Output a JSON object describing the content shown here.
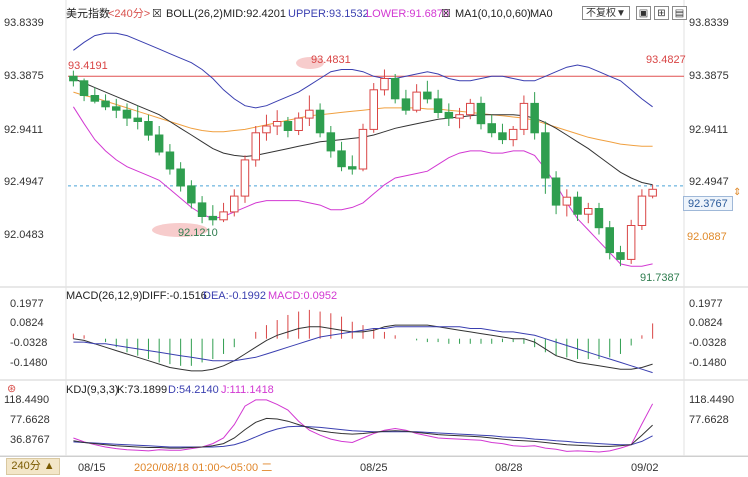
{
  "header": {
    "title": "美元指数",
    "timeframe": "<240分>",
    "boll": "BOLL(26,2)",
    "mid": "MID:92.4201",
    "upper": "UPPER:93.1532",
    "lower": "LOWER:91.6870",
    "ma": "MA1(0,10,0,60)",
    "ma0": "MA0",
    "reweight": "不复权",
    "reweight_arrow": "▼"
  },
  "macd_header": {
    "name": "MACD(26,12,9)",
    "diff": "DIFF:-0.1516",
    "dea": "DEA:-0.1992",
    "macd": "MACD:0.0952"
  },
  "kdj_header": {
    "name": "KDJ(9,3,3)",
    "k": "K:73.1899",
    "d": "D:54.2140",
    "j": "J:111.1418"
  },
  "footer": {
    "timeframe_button": "240分 ▲",
    "date_labels": [
      "08/15",
      "08/25",
      "08/28",
      "09/02"
    ],
    "cursor_time": "2020/08/18 01:00～05:00 二"
  },
  "price_axis": [
    "93.8339",
    "93.3875",
    "92.9411",
    "92.4947",
    "92.0483"
  ],
  "price_marks": {
    "current_price": "92.3767",
    "mid_level": "92.0887",
    "hline_left": "93.4191",
    "hline_center": "93.4831",
    "hline_right": "93.4827",
    "low_left": "92.1210",
    "low_right": "91.7387"
  },
  "macd_axis": [
    "0.1977",
    "0.0824",
    "-0.0328",
    "-0.1480"
  ],
  "kdj_axis": [
    "118.4490",
    "77.6628",
    "36.8767"
  ],
  "colors": {
    "up": "#d94545",
    "down": "#2f9e4f",
    "mid": "#333333",
    "upper": "#3a3fb0",
    "lower": "#d238d2",
    "ma": "#f0a040",
    "hline": "#e05050",
    "current": "#4aa3d8"
  },
  "chart_data": {
    "type": "candlestick",
    "ylim": [
      91.6,
      93.9
    ],
    "candles": [
      [
        93.42,
        93.47,
        93.33,
        93.38
      ],
      [
        93.38,
        93.4,
        93.2,
        93.25
      ],
      [
        93.25,
        93.32,
        93.18,
        93.2
      ],
      [
        93.2,
        93.26,
        93.12,
        93.15
      ],
      [
        93.15,
        93.22,
        93.05,
        93.12
      ],
      [
        93.12,
        93.18,
        92.98,
        93.05
      ],
      [
        93.05,
        93.16,
        92.95,
        93.02
      ],
      [
        93.02,
        93.08,
        92.85,
        92.9
      ],
      [
        92.9,
        92.98,
        92.72,
        92.75
      ],
      [
        92.75,
        92.82,
        92.55,
        92.6
      ],
      [
        92.6,
        92.66,
        92.4,
        92.45
      ],
      [
        92.45,
        92.5,
        92.25,
        92.3
      ],
      [
        92.3,
        92.36,
        92.12,
        92.18
      ],
      [
        92.18,
        92.28,
        92.1,
        92.15
      ],
      [
        92.15,
        92.3,
        92.13,
        92.22
      ],
      [
        92.22,
        92.42,
        92.18,
        92.36
      ],
      [
        92.36,
        92.72,
        92.3,
        92.68
      ],
      [
        92.68,
        92.98,
        92.62,
        92.92
      ],
      [
        92.92,
        93.08,
        92.85,
        92.98
      ],
      [
        92.98,
        93.12,
        92.9,
        93.02
      ],
      [
        93.02,
        93.06,
        92.88,
        92.94
      ],
      [
        92.94,
        93.1,
        92.9,
        93.05
      ],
      [
        93.05,
        93.25,
        92.98,
        93.12
      ],
      [
        93.12,
        93.18,
        92.88,
        92.92
      ],
      [
        92.92,
        92.98,
        92.7,
        92.76
      ],
      [
        92.76,
        92.84,
        92.58,
        92.62
      ],
      [
        92.62,
        92.72,
        92.55,
        92.6
      ],
      [
        92.6,
        93.0,
        92.58,
        92.95
      ],
      [
        92.95,
        93.36,
        92.92,
        93.3
      ],
      [
        93.3,
        93.48,
        93.25,
        93.4
      ],
      [
        93.4,
        93.44,
        93.18,
        93.22
      ],
      [
        93.22,
        93.3,
        93.08,
        93.12
      ],
      [
        93.12,
        93.35,
        93.1,
        93.28
      ],
      [
        93.28,
        93.38,
        93.18,
        93.22
      ],
      [
        93.22,
        93.3,
        93.05,
        93.1
      ],
      [
        93.1,
        93.18,
        92.98,
        93.05
      ],
      [
        93.05,
        93.14,
        92.96,
        93.08
      ],
      [
        93.08,
        93.22,
        93.04,
        93.18
      ],
      [
        93.18,
        93.24,
        92.95,
        93.0
      ],
      [
        93.0,
        93.08,
        92.88,
        92.92
      ],
      [
        92.92,
        93.0,
        92.82,
        92.86
      ],
      [
        92.86,
        92.98,
        92.8,
        92.95
      ],
      [
        92.95,
        93.25,
        92.9,
        93.18
      ],
      [
        93.18,
        93.28,
        92.86,
        92.92
      ],
      [
        92.92,
        93.02,
        92.38,
        92.52
      ],
      [
        92.52,
        92.58,
        92.2,
        92.28
      ],
      [
        92.28,
        92.42,
        92.18,
        92.35
      ],
      [
        92.35,
        92.4,
        92.14,
        92.2
      ],
      [
        92.2,
        92.3,
        92.12,
        92.25
      ],
      [
        92.25,
        92.3,
        92.02,
        92.08
      ],
      [
        92.08,
        92.14,
        91.8,
        91.86
      ],
      [
        91.86,
        91.92,
        91.74,
        91.8
      ],
      [
        91.8,
        92.15,
        91.76,
        92.1
      ],
      [
        92.1,
        92.42,
        92.06,
        92.36
      ],
      [
        92.36,
        92.46,
        92.34,
        92.42
      ]
    ],
    "mid": [
      93.4,
      93.36,
      93.32,
      93.28,
      93.24,
      93.2,
      93.16,
      93.12,
      93.08,
      93.02,
      92.96,
      92.9,
      92.84,
      92.78,
      92.74,
      92.72,
      92.71,
      92.72,
      92.74,
      92.76,
      92.78,
      92.8,
      92.82,
      92.84,
      92.85,
      92.86,
      92.87,
      92.88,
      92.9,
      92.93,
      92.96,
      92.98,
      93.0,
      93.02,
      93.04,
      93.05,
      93.06,
      93.07,
      93.08,
      93.08,
      93.08,
      93.08,
      93.07,
      93.05,
      93.01,
      92.96,
      92.9,
      92.84,
      92.78,
      92.71,
      92.64,
      92.57,
      92.52,
      92.48,
      92.46
    ],
    "upper": [
      93.65,
      93.72,
      93.78,
      93.8,
      93.8,
      93.78,
      93.74,
      93.7,
      93.66,
      93.62,
      93.58,
      93.54,
      93.48,
      93.4,
      93.3,
      93.22,
      93.16,
      93.14,
      93.16,
      93.2,
      93.24,
      93.28,
      93.34,
      93.4,
      93.46,
      93.48,
      93.48,
      93.46,
      93.42,
      93.4,
      93.4,
      93.42,
      93.44,
      93.46,
      93.44,
      93.4,
      93.38,
      93.38,
      93.4,
      93.42,
      93.42,
      93.4,
      93.38,
      93.38,
      93.42,
      93.46,
      93.5,
      93.52,
      93.5,
      93.46,
      93.42,
      93.38,
      93.3,
      93.22,
      93.15
    ],
    "lower": [
      93.15,
      93.0,
      92.86,
      92.76,
      92.68,
      92.62,
      92.58,
      92.54,
      92.5,
      92.42,
      92.34,
      92.26,
      92.2,
      92.16,
      92.18,
      92.22,
      92.26,
      92.3,
      92.32,
      92.32,
      92.32,
      92.32,
      92.3,
      92.28,
      92.24,
      92.24,
      92.26,
      92.3,
      92.38,
      92.46,
      92.52,
      92.54,
      92.56,
      92.58,
      92.64,
      92.7,
      92.74,
      92.76,
      92.76,
      92.74,
      92.74,
      92.76,
      92.76,
      92.72,
      92.6,
      92.46,
      92.3,
      92.16,
      92.06,
      91.96,
      91.86,
      91.76,
      91.74,
      91.74,
      91.76
    ],
    "ma": [
      93.28,
      93.25,
      93.23,
      93.2,
      93.17,
      93.14,
      93.11,
      93.08,
      93.05,
      93.02,
      92.99,
      92.96,
      92.94,
      92.93,
      92.93,
      92.94,
      92.95,
      92.97,
      92.99,
      93.01,
      93.03,
      93.05,
      93.07,
      93.08,
      93.09,
      93.1,
      93.11,
      93.12,
      93.13,
      93.14,
      93.14,
      93.14,
      93.14,
      93.13,
      93.13,
      93.12,
      93.11,
      93.1,
      93.09,
      93.08,
      93.07,
      93.06,
      93.05,
      93.03,
      93.0,
      92.97,
      92.94,
      92.91,
      92.88,
      92.86,
      92.84,
      92.82,
      92.81,
      92.8,
      92.8
    ],
    "hline": 93.42,
    "current": 92.45,
    "macd_ylim": [
      -0.22,
      0.24
    ],
    "macd_hist": [
      0.03,
      0.02,
      0.0,
      -0.02,
      -0.05,
      -0.08,
      -0.1,
      -0.12,
      -0.14,
      -0.15,
      -0.16,
      -0.16,
      -0.14,
      -0.12,
      -0.09,
      -0.05,
      0.0,
      0.04,
      0.08,
      0.11,
      0.14,
      0.16,
      0.17,
      0.16,
      0.15,
      0.13,
      0.1,
      0.08,
      0.06,
      0.04,
      0.02,
      0.0,
      -0.01,
      -0.02,
      -0.02,
      -0.03,
      -0.03,
      -0.03,
      -0.03,
      -0.03,
      -0.02,
      -0.02,
      -0.03,
      -0.05,
      -0.08,
      -0.1,
      -0.11,
      -0.12,
      -0.12,
      -0.12,
      -0.11,
      -0.09,
      -0.04,
      0.02,
      0.09
    ],
    "macd_diff": [
      0.0,
      -0.01,
      -0.03,
      -0.05,
      -0.07,
      -0.09,
      -0.11,
      -0.13,
      -0.15,
      -0.17,
      -0.18,
      -0.19,
      -0.19,
      -0.18,
      -0.16,
      -0.13,
      -0.09,
      -0.05,
      -0.01,
      0.02,
      0.04,
      0.06,
      0.07,
      0.07,
      0.06,
      0.05,
      0.04,
      0.04,
      0.05,
      0.07,
      0.08,
      0.08,
      0.08,
      0.08,
      0.07,
      0.06,
      0.05,
      0.04,
      0.03,
      0.02,
      0.01,
      0.0,
      0.0,
      -0.02,
      -0.06,
      -0.1,
      -0.12,
      -0.14,
      -0.15,
      -0.16,
      -0.17,
      -0.18,
      -0.18,
      -0.17,
      -0.15
    ],
    "macd_dea": [
      -0.02,
      -0.02,
      -0.03,
      -0.03,
      -0.04,
      -0.05,
      -0.06,
      -0.07,
      -0.08,
      -0.09,
      -0.1,
      -0.11,
      -0.12,
      -0.13,
      -0.13,
      -0.13,
      -0.12,
      -0.11,
      -0.09,
      -0.07,
      -0.05,
      -0.03,
      -0.01,
      0.01,
      0.02,
      0.03,
      0.04,
      0.05,
      0.06,
      0.06,
      0.07,
      0.07,
      0.07,
      0.07,
      0.07,
      0.07,
      0.07,
      0.06,
      0.06,
      0.05,
      0.04,
      0.04,
      0.03,
      0.02,
      0.0,
      -0.02,
      -0.04,
      -0.06,
      -0.08,
      -0.1,
      -0.12,
      -0.14,
      -0.16,
      -0.18,
      -0.2
    ],
    "kdj_ylim": [
      25,
      125
    ],
    "kdj_k": [
      45,
      42,
      40,
      38,
      36,
      35,
      34,
      33,
      33,
      32,
      32,
      33,
      34,
      36,
      40,
      50,
      65,
      78,
      85,
      84,
      80,
      74,
      68,
      63,
      60,
      58,
      57,
      58,
      60,
      62,
      63,
      62,
      60,
      58,
      56,
      55,
      54,
      53,
      52,
      50,
      48,
      46,
      45,
      44,
      42,
      40,
      38,
      37,
      36,
      35,
      35,
      36,
      38,
      55,
      73
    ],
    "kdj_d": [
      43,
      42,
      41,
      40,
      39,
      38,
      37,
      36,
      35,
      34,
      34,
      34,
      34,
      34,
      35,
      38,
      44,
      52,
      60,
      66,
      70,
      71,
      70,
      69,
      67,
      65,
      63,
      62,
      61,
      61,
      61,
      61,
      61,
      60,
      59,
      58,
      57,
      56,
      55,
      54,
      52,
      51,
      50,
      48,
      47,
      45,
      44,
      42,
      41,
      40,
      39,
      38,
      38,
      44,
      54
    ],
    "kdj_j": [
      50,
      43,
      38,
      34,
      31,
      29,
      28,
      27,
      29,
      28,
      28,
      31,
      34,
      40,
      50,
      74,
      107,
      118,
      118,
      110,
      100,
      80,
      64,
      55,
      48,
      44,
      42,
      50,
      58,
      64,
      67,
      64,
      58,
      54,
      50,
      49,
      48,
      47,
      46,
      42,
      40,
      36,
      35,
      36,
      32,
      30,
      26,
      27,
      26,
      25,
      27,
      32,
      38,
      75,
      111
    ]
  }
}
